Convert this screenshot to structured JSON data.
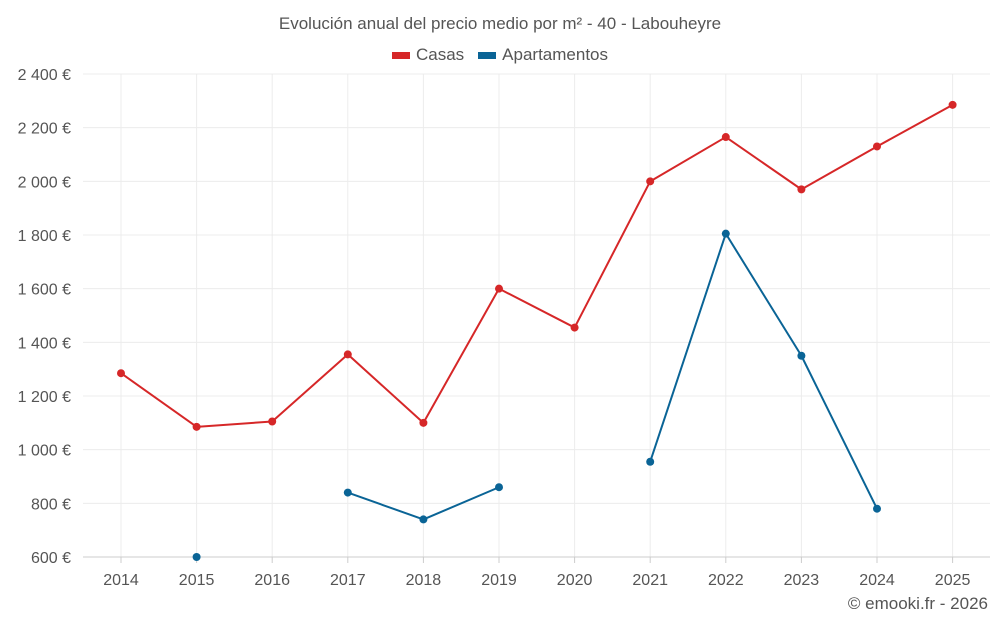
{
  "chart_data": {
    "type": "line",
    "title": "Evolución anual del precio medio por m² - 40 - Labouheyre",
    "categories": [
      "2014",
      "2015",
      "2016",
      "2017",
      "2018",
      "2019",
      "2020",
      "2021",
      "2022",
      "2023",
      "2024",
      "2025"
    ],
    "ylim": [
      600,
      2400
    ],
    "ytick_values": [
      600,
      800,
      1000,
      1200,
      1400,
      1600,
      1800,
      2000,
      2200,
      2400
    ],
    "ytick_labels": [
      "600 €",
      "800 €",
      "1 000 €",
      "1 200 €",
      "1 400 €",
      "1 600 €",
      "1 800 €",
      "2 000 €",
      "2 200 €",
      "2 400 €"
    ],
    "grid": true,
    "legend_position": "top-center",
    "series": [
      {
        "name": "Casas",
        "color": "#d62728",
        "values": [
          1285,
          1085,
          1105,
          1355,
          1100,
          1600,
          1455,
          2000,
          2165,
          1970,
          2130,
          2285
        ]
      },
      {
        "name": "Apartamentos",
        "color": "#0a6496",
        "values": [
          null,
          600,
          null,
          840,
          740,
          860,
          null,
          955,
          1805,
          1350,
          780,
          null
        ]
      }
    ],
    "credit": "© emooki.fr - 2026"
  }
}
